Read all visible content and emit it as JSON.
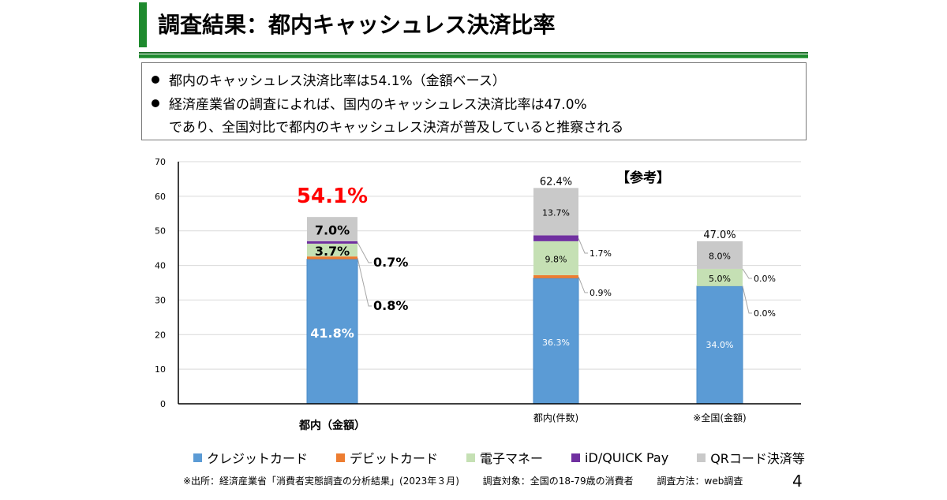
{
  "header": {
    "title": "調査結果：都内キャッシュレス決済比率"
  },
  "summary": {
    "bullets": [
      "都内のキャッシュレス決済比率は54.1%（金額ベース）",
      "経済産業省の調査によれば、国内のキャッシュレス決済比率は47.0%"
    ],
    "continuation": "であり、全国対比で都内のキャッシュレス決済が普及していると推察される"
  },
  "chart_data": {
    "type": "bar",
    "stacked": true,
    "title": "",
    "xlabel": "",
    "ylabel": "",
    "ylim": [
      0,
      70
    ],
    "yticks": [
      0,
      10,
      20,
      30,
      40,
      50,
      60,
      70
    ],
    "grid": true,
    "legend_position": "bottom",
    "categories": [
      "都内（金額）",
      "都内(件数)",
      "※全国(金額)"
    ],
    "series": [
      {
        "name": "クレジットカード",
        "color": "#5b9bd5",
        "values": [
          41.8,
          36.3,
          34.0
        ],
        "labels": [
          "41.8%",
          "36.3%",
          "34.0%"
        ]
      },
      {
        "name": "デビットカード",
        "color": "#ed7d31",
        "values": [
          0.8,
          0.9,
          0.0
        ],
        "labels": [
          "0.8%",
          "0.9%",
          "0.0%"
        ]
      },
      {
        "name": "電子マネー",
        "color": "#c5e0b4",
        "values": [
          3.7,
          9.8,
          5.0
        ],
        "labels": [
          "3.7%",
          "9.8%",
          "5.0%"
        ]
      },
      {
        "name": "iD/QUICK Pay",
        "color": "#7030a0",
        "values": [
          0.7,
          1.7,
          0.0
        ],
        "labels": [
          "0.7%",
          "1.7%",
          "0.0%"
        ]
      },
      {
        "name": "QRコード決済等",
        "color": "#c9c9c9",
        "values": [
          7.0,
          13.7,
          8.0
        ],
        "labels": [
          "7.0%",
          "13.7%",
          "8.0%"
        ]
      }
    ],
    "totals": [
      "54.1%",
      "62.4%",
      "47.0%"
    ],
    "highlight_total_color": "#ff0000",
    "annotation": "【参考】"
  },
  "footer": {
    "source": "※出所：経済産業省「消費者実態調査の分析結果」(2023年３月)",
    "target": "調査対象：全国の18-79歳の消費者",
    "method": "調査方法：web調査",
    "page_number": "4"
  }
}
